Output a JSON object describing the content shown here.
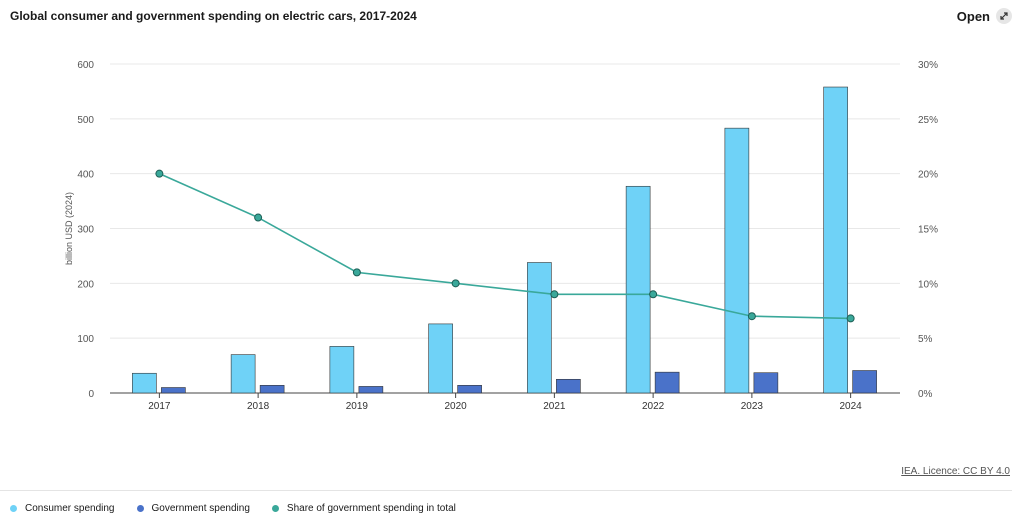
{
  "header": {
    "title": "Global consumer and government spending on electric cars, 2017-2024",
    "open_label": "Open"
  },
  "source_label": "IEA. Licence: CC BY 4.0",
  "legend": [
    {
      "label": "Consumer spending",
      "color": "#6fd2f7"
    },
    {
      "label": "Government spending",
      "color": "#4a72c9"
    },
    {
      "label": "Share of government spending in total",
      "color": "#3aa89a"
    }
  ],
  "chart_data": {
    "type": "bar",
    "title": "Global consumer and government spending on electric cars, 2017-2024",
    "categories": [
      "2017",
      "2018",
      "2019",
      "2020",
      "2021",
      "2022",
      "2023",
      "2024"
    ],
    "ylabel": "billion USD (2024)",
    "ylim": [
      0,
      600
    ],
    "yticks": [
      "0",
      "100",
      "200",
      "300",
      "400",
      "500",
      "600"
    ],
    "y2lim": [
      0,
      30
    ],
    "y2ticks": [
      "0%",
      "5%",
      "10%",
      "15%",
      "20%",
      "25%",
      "30%"
    ],
    "grid": true,
    "series": [
      {
        "name": "Consumer spending",
        "type": "bar",
        "color": "#6fd2f7",
        "values": [
          36,
          70,
          85,
          126,
          238,
          377,
          483,
          558
        ]
      },
      {
        "name": "Government spending",
        "type": "bar",
        "color": "#4a72c9",
        "values": [
          10,
          14,
          12,
          14,
          25,
          38,
          37,
          41
        ]
      },
      {
        "name": "Share of government spending in total",
        "type": "line",
        "axis": "right",
        "color": "#3aa89a",
        "values": [
          20,
          16,
          11,
          10,
          9,
          9,
          7,
          6.8
        ]
      }
    ]
  }
}
